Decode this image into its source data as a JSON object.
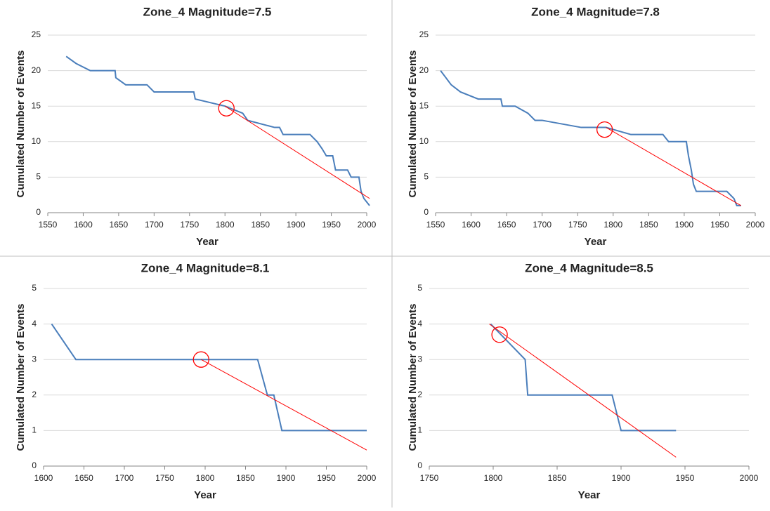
{
  "chart_data": [
    {
      "type": "line",
      "title": "Zone_4 Magnitude=7.5",
      "xlabel": "Year",
      "ylabel": "Cumulated Number of Events",
      "xlim": [
        1550,
        2000
      ],
      "xticks": [
        1550,
        1600,
        1650,
        1700,
        1750,
        1800,
        1850,
        1900,
        1950,
        2000
      ],
      "ylim": [
        0,
        25
      ],
      "yticks": [
        0,
        5,
        10,
        15,
        20,
        25
      ],
      "grid": true,
      "series": [
        {
          "color": "#4a7ebb",
          "x": [
            1576,
            1590,
            1610,
            1645,
            1646,
            1660,
            1690,
            1700,
            1756,
            1758,
            1800,
            1825,
            1832,
            1870,
            1877,
            1882,
            1920,
            1930,
            1937,
            1943,
            1952,
            1956,
            1973,
            1978,
            1989,
            1992,
            1996,
            2004
          ],
          "values": [
            22,
            21,
            20,
            20,
            19,
            18,
            18,
            17,
            17,
            16,
            15,
            14,
            13,
            12,
            12,
            11,
            11,
            10,
            9,
            8,
            8,
            6,
            6,
            5,
            5,
            3,
            2,
            1
          ]
        },
        {
          "color": "#ff0000",
          "x": [
            1800,
            2004
          ],
          "values": [
            15,
            2
          ]
        }
      ],
      "highlight": {
        "x": 1802,
        "y": 14.7,
        "color": "#ff0000"
      }
    },
    {
      "type": "line",
      "title": "Zone_4 Magnitude=7.8",
      "xlabel": "Year",
      "ylabel": "Cumulated Number of Events",
      "xlim": [
        1550,
        2000
      ],
      "xticks": [
        1550,
        1600,
        1650,
        1700,
        1750,
        1800,
        1850,
        1900,
        1950,
        2000
      ],
      "ylim": [
        0,
        25
      ],
      "yticks": [
        0,
        5,
        10,
        15,
        20,
        25
      ],
      "grid": true,
      "series": [
        {
          "color": "#4a7ebb",
          "x": [
            1557,
            1572,
            1585,
            1610,
            1642,
            1644,
            1662,
            1680,
            1690,
            1700,
            1755,
            1790,
            1825,
            1870,
            1878,
            1903,
            1906,
            1910,
            1913,
            1917,
            1960,
            1970,
            1974,
            1980
          ],
          "values": [
            20,
            18,
            17,
            16,
            16,
            15,
            15,
            14,
            13,
            13,
            12,
            12,
            11,
            11,
            10,
            10,
            8,
            6,
            4,
            3,
            3,
            2,
            1,
            1
          ]
        },
        {
          "color": "#ff0000",
          "x": [
            1790,
            1980
          ],
          "values": [
            12,
            1
          ]
        }
      ],
      "highlight": {
        "x": 1788,
        "y": 11.7,
        "color": "#ff0000"
      }
    },
    {
      "type": "line",
      "title": "Zone_4 Magnitude=8.1",
      "xlabel": "Year",
      "ylabel": "Cumulated Number of Events",
      "xlim": [
        1600,
        2000
      ],
      "xticks": [
        1600,
        1650,
        1700,
        1750,
        1800,
        1850,
        1900,
        1950,
        2000
      ],
      "ylim": [
        0,
        5
      ],
      "yticks": [
        0,
        1,
        2,
        3,
        4,
        5
      ],
      "grid": true,
      "series": [
        {
          "color": "#4a7ebb",
          "x": [
            1610,
            1640,
            1865,
            1877,
            1885,
            1895,
            2000
          ],
          "values": [
            4,
            3,
            3,
            2,
            2,
            1,
            1
          ]
        },
        {
          "color": "#ff0000",
          "x": [
            1795,
            2000
          ],
          "values": [
            3,
            0.45
          ]
        }
      ],
      "highlight": {
        "x": 1795,
        "y": 3,
        "color": "#ff0000"
      }
    },
    {
      "type": "line",
      "title": "Zone_4 Magnitude=8.5",
      "xlabel": "Year",
      "ylabel": "Cumulated Number of Events",
      "xlim": [
        1750,
        2000
      ],
      "xticks": [
        1750,
        1800,
        1850,
        1900,
        1950,
        2000
      ],
      "ylim": [
        0,
        5
      ],
      "yticks": [
        0,
        1,
        2,
        3,
        4,
        5
      ],
      "grid": true,
      "series": [
        {
          "color": "#4a7ebb",
          "x": [
            1798,
            1825,
            1827,
            1893,
            1900,
            1943
          ],
          "values": [
            4,
            3,
            2,
            2,
            1,
            1
          ]
        },
        {
          "color": "#ff0000",
          "x": [
            1797,
            1943
          ],
          "values": [
            4,
            0.25
          ]
        }
      ],
      "highlight": {
        "x": 1805,
        "y": 3.7,
        "color": "#ff0000"
      }
    }
  ]
}
